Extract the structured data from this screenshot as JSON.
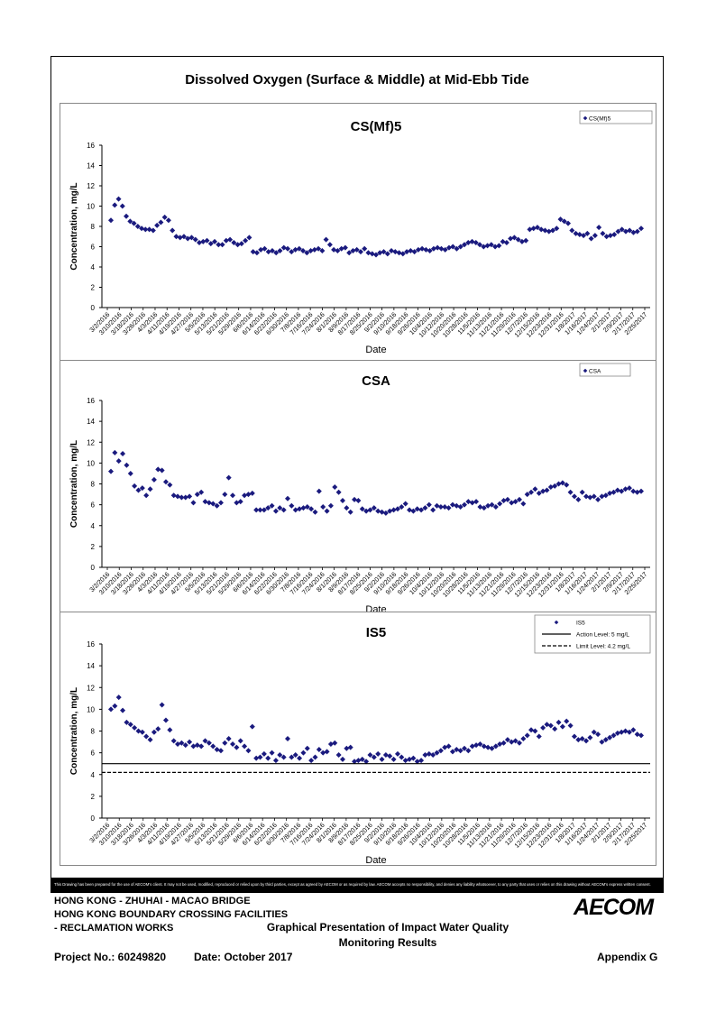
{
  "page": {
    "main_title": "Dissolved Oxygen (Surface & Middle) at Mid-Ebb Tide",
    "disclaimer": "This Drawing has been prepared for the use of AECOM's client. It may not be used, modified, reproduced or relied upon by third parties, except as agreed by AECOM or as required by law. AECOM accepts no responsibility, and denies any liability whatsoever, to any party that uses or relies on this drawing without AECOM's express written consent.",
    "footer": {
      "line1": "HONG KONG - ZHUHAI - MACAO BRIDGE",
      "line2": "HONG KONG BOUNDARY CROSSING FACILITIES",
      "line3": "- RECLAMATION WORKS",
      "center1": "Graphical Presentation of Impact Water Quality",
      "center2": "Monitoring Results",
      "project": "Project No.: 60249820",
      "date": "Date: October 2017",
      "appendix": "Appendix G",
      "logo": "AECOM"
    },
    "colors": {
      "marker": "#1a1a7e",
      "axis": "#000000"
    }
  },
  "chart_data": [
    {
      "type": "scatter",
      "title": "CS(Mf)5",
      "xlabel": "Date",
      "ylabel": "Concentration, mg/L",
      "ylim": [
        0,
        16
      ],
      "yticks": [
        0,
        2,
        4,
        6,
        8,
        10,
        12,
        14,
        16
      ],
      "grid": false,
      "legend_position": "top-right",
      "categories": [
        "3/2/2016",
        "3/10/2016",
        "3/18/2016",
        "3/26/2016",
        "4/3/2016",
        "4/11/2016",
        "4/19/2016",
        "4/27/2016",
        "5/5/2016",
        "5/13/2016",
        "5/21/2016",
        "5/29/2016",
        "6/6/2016",
        "6/14/2016",
        "6/22/2016",
        "6/30/2016",
        "7/8/2016",
        "7/16/2016",
        "7/24/2016",
        "8/1/2016",
        "8/9/2016",
        "8/17/2016",
        "8/25/2016",
        "9/2/2016",
        "9/10/2016",
        "9/18/2016",
        "9/26/2016",
        "10/4/2016",
        "10/12/2016",
        "10/20/2016",
        "10/28/2016",
        "11/5/2016",
        "11/13/2016",
        "11/21/2016",
        "11/29/2016",
        "12/7/2016",
        "12/15/2016",
        "12/23/2016",
        "12/31/2016",
        "1/8/2017",
        "1/16/2017",
        "1/24/2017",
        "2/1/2017",
        "2/9/2017",
        "2/17/2017",
        "2/25/2017"
      ],
      "series": [
        {
          "name": "CS(Mf)5",
          "values": [
            8.6,
            10.1,
            10.7,
            10.0,
            9.0,
            8.5,
            8.3,
            8.0,
            7.8,
            7.7,
            7.7,
            7.6,
            8.1,
            8.4,
            8.9,
            8.6,
            7.6,
            7.0,
            6.9,
            7.0,
            6.8,
            6.9,
            6.7,
            6.4,
            6.5,
            6.6,
            6.3,
            6.5,
            6.2,
            6.2,
            6.6,
            6.7,
            6.4,
            6.2,
            6.3,
            6.6,
            6.9,
            5.5,
            5.4,
            5.7,
            5.8,
            5.5,
            5.6,
            5.4,
            5.6,
            5.9,
            5.8,
            5.5,
            5.7,
            5.8,
            5.6,
            5.4,
            5.6,
            5.7,
            5.8,
            5.6,
            6.7,
            6.2,
            5.7,
            5.6,
            5.8,
            5.9,
            5.4,
            5.6,
            5.7,
            5.5,
            5.8,
            5.4,
            5.3,
            5.2,
            5.4,
            5.5,
            5.3,
            5.6,
            5.5,
            5.4,
            5.3,
            5.5,
            5.6,
            5.5,
            5.7,
            5.8,
            5.7,
            5.6,
            5.8,
            5.9,
            5.8,
            5.7,
            5.9,
            6.0,
            5.8,
            6.0,
            6.2,
            6.4,
            6.5,
            6.4,
            6.2,
            6.0,
            6.1,
            6.2,
            6.0,
            6.1,
            6.5,
            6.4,
            6.8,
            6.9,
            6.7,
            6.5,
            6.6,
            7.7,
            7.8,
            7.9,
            7.7,
            7.6,
            7.5,
            7.6,
            7.8,
            8.7,
            8.5,
            8.3,
            7.6,
            7.3,
            7.2,
            7.1,
            7.3,
            6.8,
            7.1,
            7.9,
            7.3,
            7.0,
            7.1,
            7.2,
            7.5,
            7.7,
            7.5,
            7.6,
            7.4,
            7.5,
            7.8
          ]
        }
      ]
    },
    {
      "type": "scatter",
      "title": "CSA",
      "xlabel": "Date",
      "ylabel": "Concentration, mg/L",
      "ylim": [
        0,
        16
      ],
      "yticks": [
        0,
        2,
        4,
        6,
        8,
        10,
        12,
        14,
        16
      ],
      "grid": false,
      "legend_position": "top-right",
      "categories": [
        "3/2/2016",
        "3/10/2016",
        "3/18/2016",
        "3/26/2016",
        "4/3/2016",
        "4/11/2016",
        "4/19/2016",
        "4/27/2016",
        "5/5/2016",
        "5/13/2016",
        "5/21/2016",
        "5/29/2016",
        "6/6/2016",
        "6/14/2016",
        "6/22/2016",
        "6/30/2016",
        "7/8/2016",
        "7/16/2016",
        "7/24/2016",
        "8/1/2016",
        "8/9/2016",
        "8/17/2016",
        "8/25/2016",
        "9/2/2016",
        "9/10/2016",
        "9/18/2016",
        "9/26/2016",
        "10/4/2016",
        "10/12/2016",
        "10/20/2016",
        "10/28/2016",
        "11/5/2016",
        "11/13/2016",
        "11/21/2016",
        "11/29/2016",
        "12/7/2016",
        "12/15/2016",
        "12/23/2016",
        "12/31/2016",
        "1/8/2017",
        "1/16/2017",
        "1/24/2017",
        "2/1/2017",
        "2/9/2017",
        "2/17/2017",
        "2/25/2017"
      ],
      "series": [
        {
          "name": "CSA",
          "values": [
            9.2,
            11.0,
            10.2,
            10.9,
            9.8,
            9.0,
            7.8,
            7.4,
            7.6,
            6.9,
            7.5,
            8.4,
            9.4,
            9.3,
            8.2,
            7.9,
            6.9,
            6.8,
            6.7,
            6.7,
            6.8,
            6.2,
            7.0,
            7.2,
            6.3,
            6.2,
            6.1,
            5.9,
            6.2,
            7.0,
            8.6,
            6.9,
            6.2,
            6.3,
            6.9,
            7.0,
            7.1,
            5.5,
            5.5,
            5.5,
            5.7,
            5.9,
            5.4,
            5.7,
            5.5,
            6.6,
            5.9,
            5.5,
            5.6,
            5.7,
            5.8,
            5.6,
            5.3,
            7.3,
            5.8,
            5.4,
            5.9,
            7.7,
            7.2,
            6.4,
            5.7,
            5.3,
            6.5,
            6.4,
            5.6,
            5.4,
            5.5,
            5.7,
            5.4,
            5.3,
            5.2,
            5.4,
            5.5,
            5.6,
            5.8,
            6.1,
            5.5,
            5.4,
            5.6,
            5.5,
            5.7,
            6.0,
            5.5,
            5.9,
            5.8,
            5.8,
            5.7,
            6.0,
            5.9,
            5.8,
            6.0,
            6.3,
            6.2,
            6.3,
            5.8,
            5.7,
            5.9,
            6.0,
            5.8,
            6.1,
            6.4,
            6.5,
            6.2,
            6.3,
            6.5,
            6.1,
            7.0,
            7.2,
            7.5,
            7.1,
            7.3,
            7.4,
            7.7,
            7.8,
            8.0,
            8.1,
            7.9,
            7.2,
            6.8,
            6.5,
            7.2,
            6.8,
            6.7,
            6.8,
            6.5,
            6.8,
            6.9,
            7.1,
            7.2,
            7.4,
            7.3,
            7.5,
            7.6,
            7.3,
            7.2,
            7.3
          ]
        }
      ]
    },
    {
      "type": "scatter",
      "title": "IS5",
      "xlabel": "Date",
      "ylabel": "Concentration, mg/L",
      "ylim": [
        0,
        16
      ],
      "yticks": [
        0,
        2,
        4,
        6,
        8,
        10,
        12,
        14,
        16
      ],
      "grid": false,
      "legend_position": "top-right",
      "categories": [
        "3/2/2016",
        "3/10/2016",
        "3/18/2016",
        "3/26/2016",
        "4/3/2016",
        "4/11/2016",
        "4/19/2016",
        "4/27/2016",
        "5/5/2016",
        "5/13/2016",
        "5/21/2016",
        "5/29/2016",
        "6/6/2016",
        "6/14/2016",
        "6/22/2016",
        "6/30/2016",
        "7/8/2016",
        "7/16/2016",
        "7/24/2016",
        "8/1/2016",
        "8/9/2016",
        "8/17/2016",
        "8/25/2016",
        "9/2/2016",
        "9/10/2016",
        "9/18/2016",
        "9/26/2016",
        "10/4/2016",
        "10/12/2016",
        "10/20/2016",
        "10/28/2016",
        "11/5/2016",
        "11/13/2016",
        "11/21/2016",
        "11/29/2016",
        "12/7/2016",
        "12/15/2016",
        "12/23/2016",
        "12/31/2016",
        "1/8/2017",
        "1/16/2017",
        "1/24/2017",
        "2/1/2017",
        "2/9/2017",
        "2/17/2017",
        "2/25/2017"
      ],
      "series": [
        {
          "name": "IS5",
          "values": [
            10.0,
            10.3,
            11.1,
            9.9,
            8.8,
            8.6,
            8.3,
            8.0,
            7.9,
            7.5,
            7.2,
            7.9,
            8.2,
            10.4,
            9.0,
            8.1,
            7.1,
            6.8,
            6.9,
            6.7,
            7.0,
            6.6,
            6.7,
            6.6,
            7.1,
            6.9,
            6.6,
            6.3,
            6.2,
            6.9,
            7.3,
            6.8,
            6.5,
            7.1,
            6.6,
            6.2,
            8.4,
            5.5,
            5.6,
            5.9,
            5.5,
            6.0,
            5.3,
            5.8,
            5.6,
            7.3,
            5.6,
            5.8,
            5.5,
            6.0,
            6.4,
            5.3,
            5.6,
            6.3,
            6.0,
            6.1,
            6.8,
            6.9,
            5.8,
            5.4,
            6.4,
            6.5,
            5.2,
            5.3,
            5.4,
            5.2,
            5.8,
            5.6,
            5.9,
            5.4,
            5.8,
            5.7,
            5.4,
            5.9,
            5.6,
            5.3,
            5.4,
            5.5,
            5.2,
            5.3,
            5.8,
            5.9,
            5.8,
            6.0,
            6.2,
            6.5,
            6.6,
            6.1,
            6.3,
            6.2,
            6.4,
            6.2,
            6.6,
            6.7,
            6.8,
            6.6,
            6.5,
            6.4,
            6.6,
            6.8,
            6.9,
            7.2,
            7.0,
            7.1,
            6.9,
            7.3,
            7.6,
            8.1,
            8.0,
            7.5,
            8.3,
            8.6,
            8.5,
            8.2,
            8.8,
            8.4,
            8.9,
            8.5,
            7.5,
            7.2,
            7.3,
            7.1,
            7.4,
            7.9,
            7.7,
            7.0,
            7.2,
            7.4,
            7.6,
            7.8,
            7.9,
            8.0,
            7.9,
            8.1,
            7.7,
            7.6
          ]
        },
        {
          "name": "Action Level: 5 mg/L",
          "values": [
            5,
            5
          ]
        },
        {
          "name": "Limit Level: 4.2 mg/L",
          "values": [
            4.2,
            4.2
          ]
        }
      ]
    }
  ]
}
